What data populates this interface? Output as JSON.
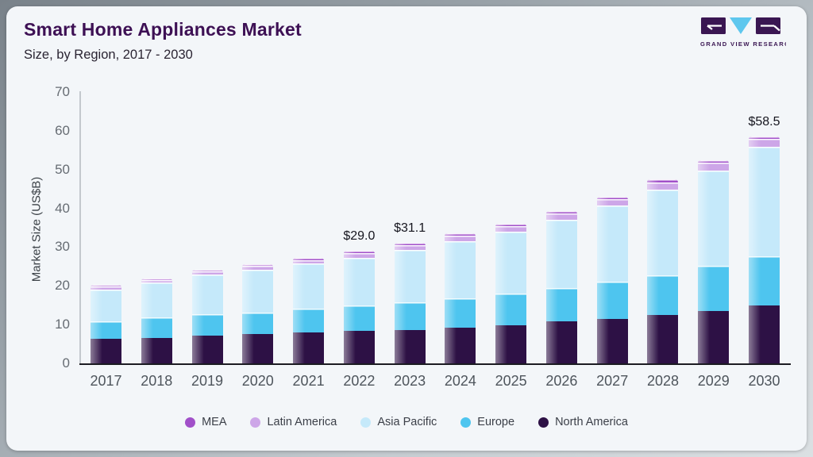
{
  "header": {
    "title": "Smart Home Appliances Market",
    "subtitle": "Size, by Region, 2017 - 2030",
    "logo_caption": "GRAND VIEW RESEARCH"
  },
  "colors": {
    "card_bg": "#f3f6f9",
    "title": "#3d1054",
    "logo_purple": "#3a1652",
    "logo_blue": "#5ec7ee",
    "axis_line": "#1b1b22"
  },
  "chart_data": {
    "type": "bar",
    "stacked": true,
    "title": "Smart Home Appliances Market Size, by Region, 2017 - 2030",
    "xlabel": "",
    "ylabel": "Market Size (US$B)",
    "ylim": [
      0,
      70
    ],
    "yticks": [
      0,
      10,
      20,
      30,
      40,
      50,
      60,
      70
    ],
    "grid": false,
    "legend_position": "bottom",
    "categories": [
      "2017",
      "2018",
      "2019",
      "2020",
      "2021",
      "2022",
      "2023",
      "2024",
      "2025",
      "2026",
      "2027",
      "2028",
      "2029",
      "2030"
    ],
    "series": [
      {
        "name": "North America",
        "color": "#2d1145",
        "values": [
          6.3,
          6.6,
          7.2,
          7.5,
          8.0,
          8.4,
          8.7,
          9.2,
          9.9,
          10.8,
          11.5,
          12.5,
          13.6,
          15.0
        ]
      },
      {
        "name": "Europe",
        "color": "#4ec5ef",
        "values": [
          4.5,
          5.2,
          5.5,
          5.7,
          6.1,
          6.5,
          7.1,
          7.5,
          8.1,
          8.6,
          9.5,
          10.3,
          11.5,
          12.6
        ]
      },
      {
        "name": "Asia Pacific",
        "color": "#c5e9fa",
        "values": [
          8.3,
          9.1,
          10.2,
          10.9,
          11.7,
          12.3,
          13.5,
          14.9,
          16.0,
          17.6,
          19.7,
          22.1,
          24.7,
          28.2
        ]
      },
      {
        "name": "Latin America",
        "color": "#cda6e8",
        "values": [
          0.7,
          0.7,
          0.8,
          1.0,
          0.9,
          1.2,
          1.3,
          1.4,
          1.4,
          1.7,
          1.6,
          1.8,
          1.9,
          2.1
        ]
      },
      {
        "name": "MEA",
        "color": "#a150c9",
        "values": [
          0.4,
          0.4,
          0.5,
          0.5,
          0.5,
          0.6,
          0.5,
          0.5,
          0.6,
          0.6,
          0.7,
          0.7,
          0.7,
          0.6
        ]
      }
    ],
    "totals": [
      20.2,
      22.0,
      24.2,
      25.6,
      27.2,
      29.0,
      31.1,
      33.5,
      36.0,
      39.3,
      43.0,
      47.4,
      52.4,
      58.5
    ],
    "bar_labels": {
      "2022": "$29.0",
      "2023": "$31.1",
      "2030": "$58.5"
    },
    "legend": [
      "MEA",
      "Latin America",
      "Asia Pacific",
      "Europe",
      "North America"
    ]
  }
}
